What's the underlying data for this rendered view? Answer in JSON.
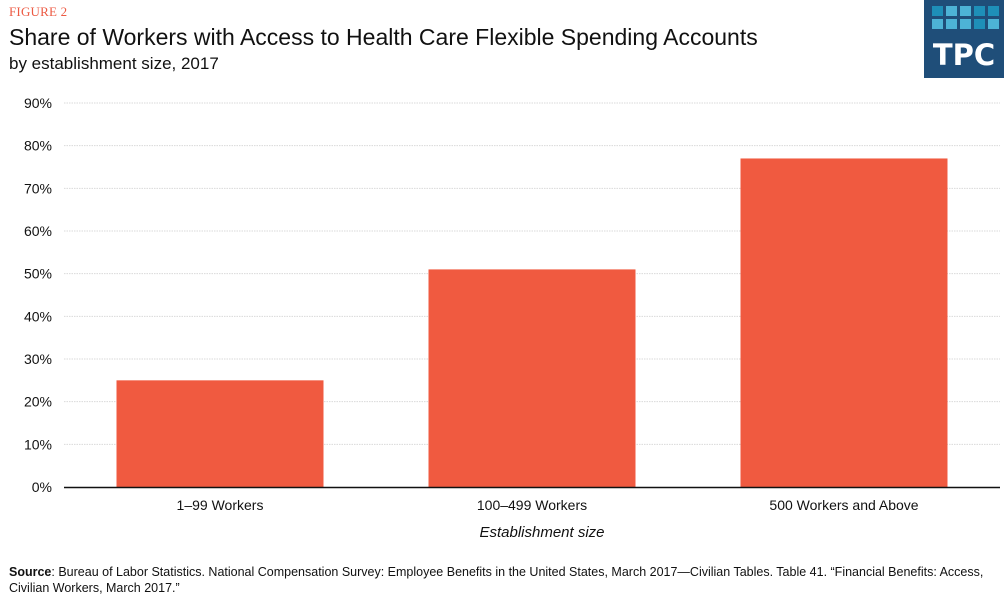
{
  "header": {
    "figure_label": "FIGURE 2",
    "title": "Share of Workers with Access to Health Care Flexible Spending Accounts",
    "subtitle": "by establishment size, 2017"
  },
  "logo": {
    "text": "TPC",
    "background": "#1f4e79",
    "tile_colors": [
      "#1e8fb8",
      "#4db3d6",
      "#4db3d6",
      "#1e8fb8",
      "#1e8fb8",
      "#4db3d6",
      "#4db3d6",
      "#4db3d6",
      "#1e8fb8",
      "#4db3d6"
    ]
  },
  "chart_data": {
    "type": "bar",
    "title": "Share of Workers with Access to Health Care Flexible Spending Accounts",
    "subtitle": "by establishment size, 2017",
    "categories": [
      "1–99 Workers",
      "100–499 Workers",
      "500 Workers and Above"
    ],
    "values": [
      25,
      51,
      77
    ],
    "unit": "%",
    "xlabel": "Establishment size",
    "ylabel": "",
    "ylim": [
      0,
      90
    ],
    "yticks": [
      0,
      10,
      20,
      30,
      40,
      50,
      60,
      70,
      80,
      90
    ],
    "ytick_labels": [
      "0%",
      "10%",
      "20%",
      "30%",
      "40%",
      "50%",
      "60%",
      "70%",
      "80%",
      "90%"
    ],
    "grid": true,
    "legend": "none",
    "bar_color": "#f05a40"
  },
  "source": {
    "label": "Source",
    "text": ": Bureau of Labor Statistics. National Compensation Survey: Employee Benefits in the United States, March 2017—Civilian  Tables. Table 41. “Financial Benefits: Access, Civilian Workers, March 2017.”"
  }
}
